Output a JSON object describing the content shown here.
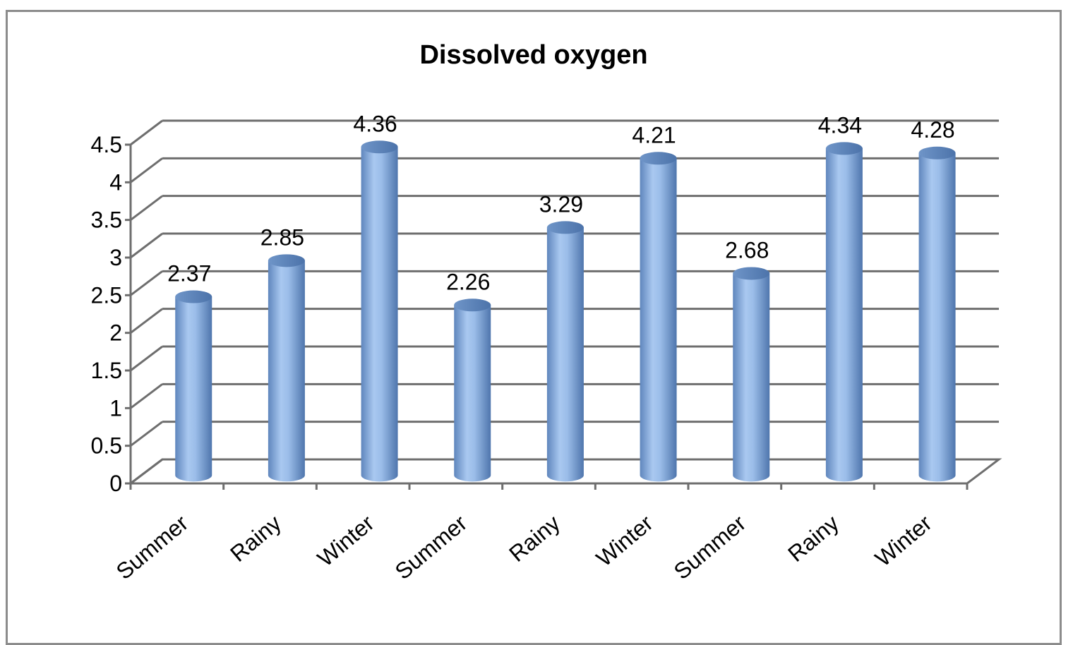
{
  "chart_data": {
    "type": "bar",
    "title": "Dissolved oxygen",
    "xlabel": "",
    "ylabel": "",
    "categories": [
      "Summer",
      "Rainy",
      "Winter",
      "Summer",
      "Rainy",
      "Winter",
      "Summer",
      "Rainy",
      "Winter"
    ],
    "values": [
      2.37,
      2.85,
      4.36,
      2.26,
      3.29,
      4.21,
      2.68,
      4.34,
      4.28
    ],
    "ylim": [
      0,
      4.5
    ],
    "yticks": [
      "0",
      "0.5",
      "1",
      "1.5",
      "2",
      "2.5",
      "3",
      "3.5",
      "4",
      "4.5"
    ],
    "grid": true,
    "legend": "none",
    "bar_color": "#8db3e2",
    "style": "3d-cylinder"
  }
}
